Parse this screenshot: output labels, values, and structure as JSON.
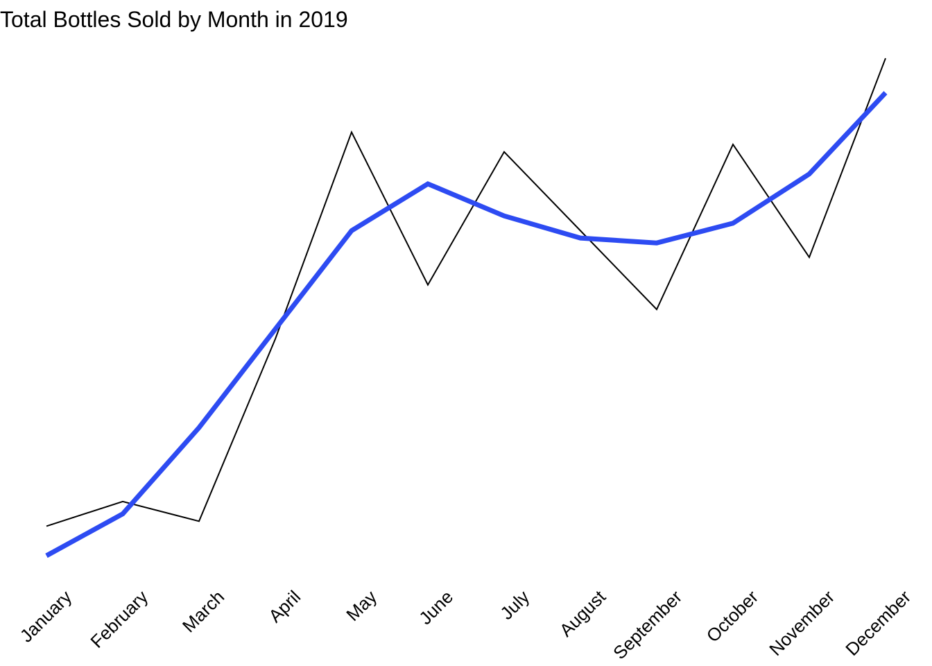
{
  "chart_data": {
    "type": "line",
    "title": "Total Bottles Sold by Month in 2019",
    "xlabel": "",
    "ylabel": "",
    "categories": [
      "January",
      "February",
      "March",
      "April",
      "May",
      "June",
      "July",
      "August",
      "September",
      "October",
      "November",
      "December"
    ],
    "series": [
      {
        "values": [
          4.0,
          9.0,
          5.0,
          42.0,
          84.0,
          53.0,
          80.0,
          64.0,
          48.0,
          81.5,
          58.6,
          99.0
        ],
        "color": "#000000"
      },
      {
        "values": [
          -2.0,
          6.5,
          24.0,
          44.0,
          64.0,
          73.5,
          67.0,
          62.5,
          61.5,
          65.5,
          75.5,
          92.0
        ],
        "color": "#2d4bf2"
      }
    ],
    "ylim": [
      -2,
      99
    ],
    "grid": false,
    "legend": "none"
  }
}
